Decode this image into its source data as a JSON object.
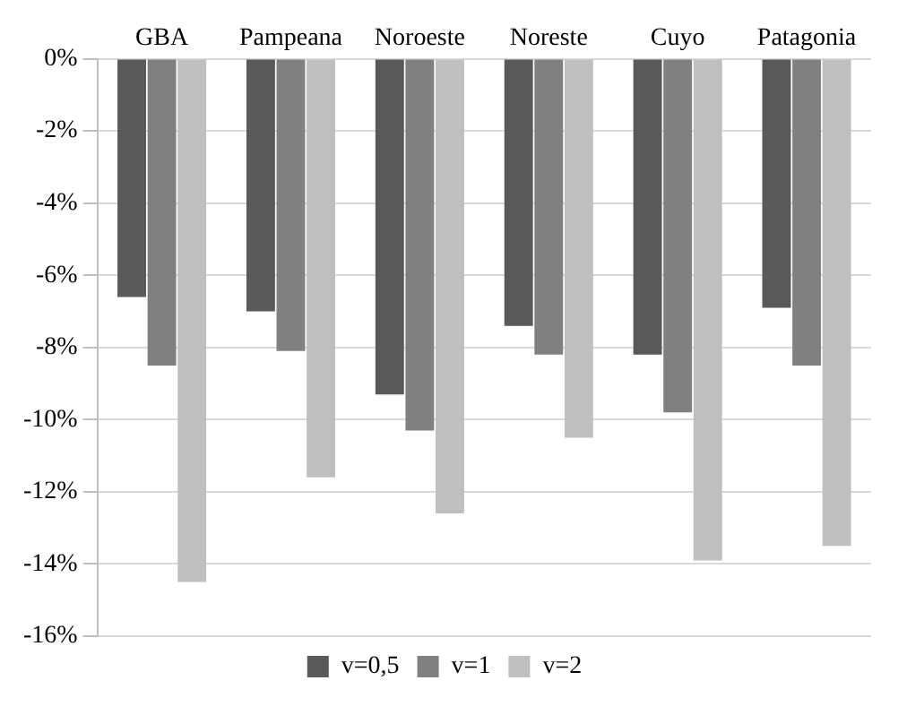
{
  "chart_data": {
    "type": "bar",
    "categories": [
      "GBA",
      "Pampeana",
      "Noroeste",
      "Noreste",
      "Cuyo",
      "Patagonia"
    ],
    "series": [
      {
        "name": "v=0,5",
        "color": "#595959",
        "values": [
          -6.6,
          -7.0,
          -9.3,
          -7.4,
          -8.2,
          -6.9
        ]
      },
      {
        "name": "v=1",
        "color": "#808080",
        "values": [
          -8.5,
          -8.1,
          -10.3,
          -8.2,
          -9.8,
          -8.5
        ]
      },
      {
        "name": "v=2",
        "color": "#bfbfbf",
        "values": [
          -14.5,
          -11.6,
          -12.6,
          -10.5,
          -13.9,
          -13.5
        ]
      }
    ],
    "ylim": [
      -16,
      0
    ],
    "yticks": [
      {
        "value": 0,
        "label": "0%"
      },
      {
        "value": -2,
        "label": "-2%"
      },
      {
        "value": -4,
        "label": "-4%"
      },
      {
        "value": -6,
        "label": "-6%"
      },
      {
        "value": -8,
        "label": "-8%"
      },
      {
        "value": -10,
        "label": "-10%"
      },
      {
        "value": -12,
        "label": "-12%"
      },
      {
        "value": -14,
        "label": "-14%"
      },
      {
        "value": -16,
        "label": "-16%"
      }
    ],
    "grid": "y",
    "legend": "bottom"
  }
}
